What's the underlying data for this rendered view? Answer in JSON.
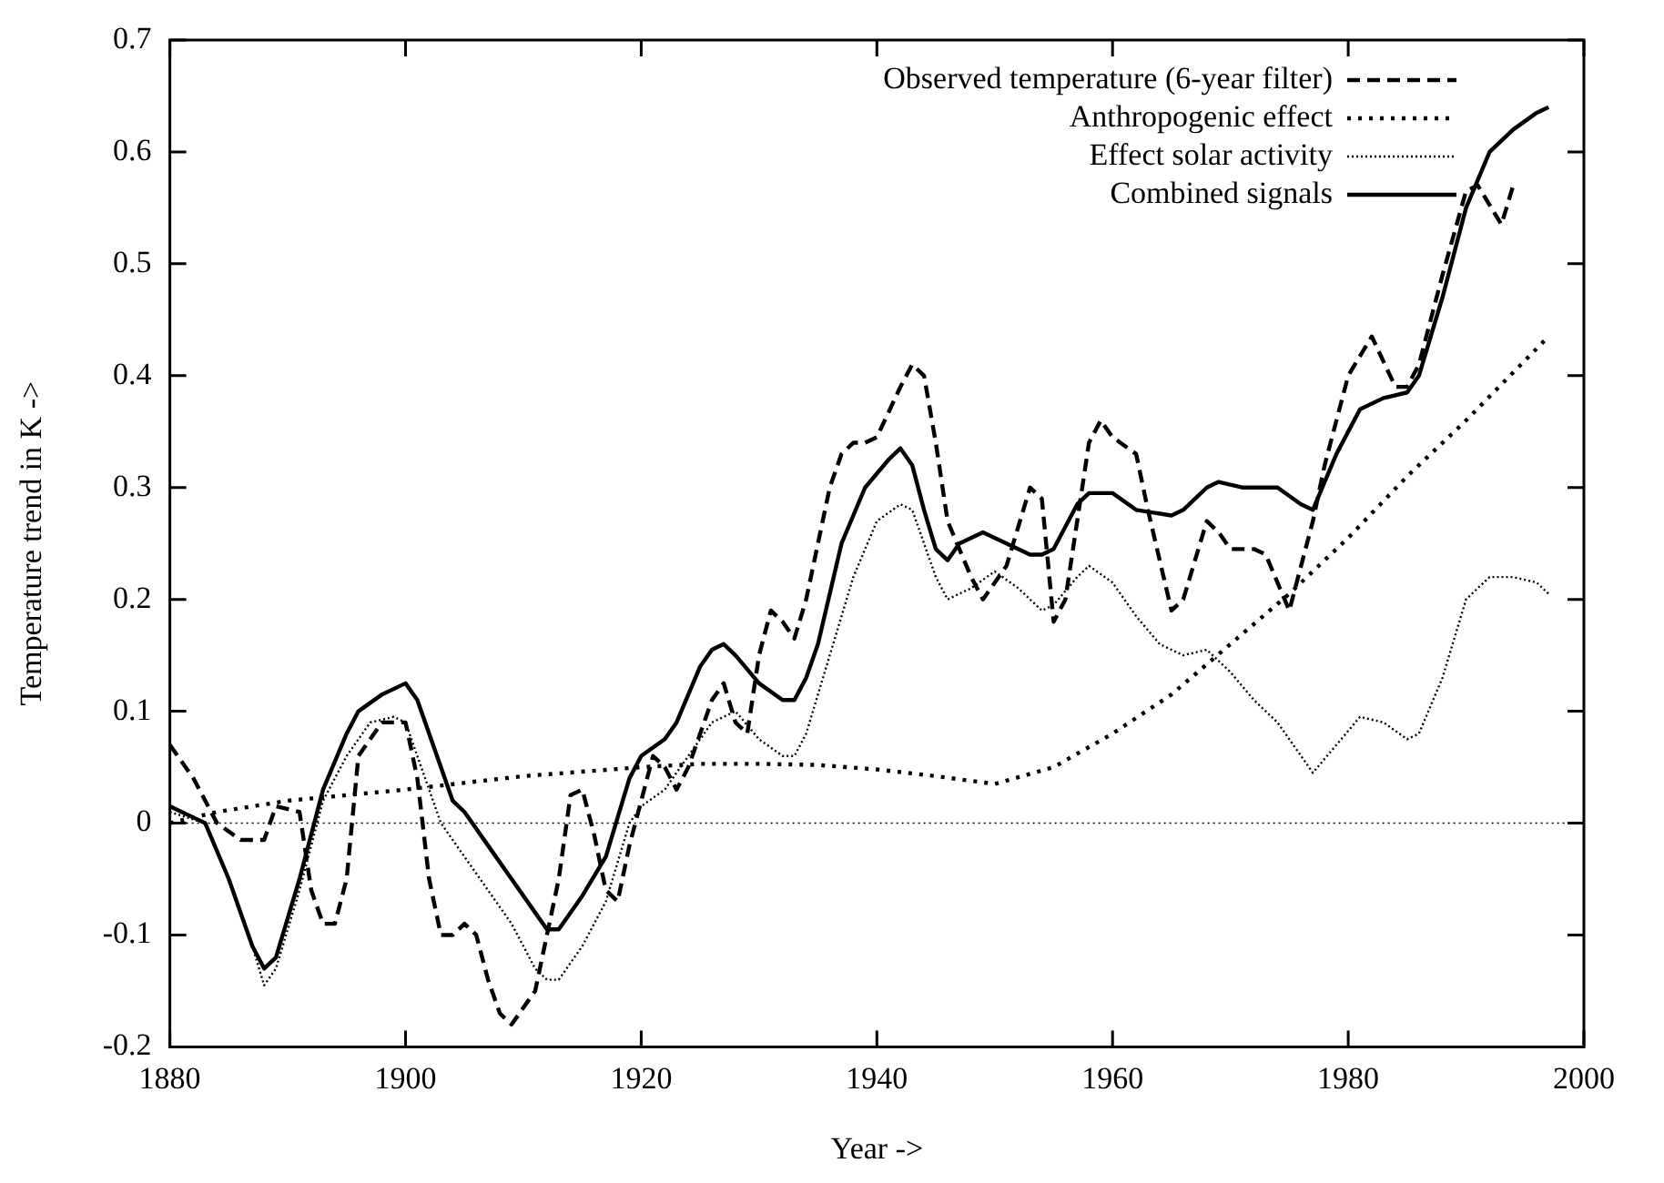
{
  "chart_data": {
    "type": "line",
    "xlabel": "Year ->",
    "ylabel": "Temperature trend in K ->",
    "xlim": [
      1880,
      2000
    ],
    "xticks": [
      1880,
      1900,
      1920,
      1940,
      1960,
      1980,
      2000
    ],
    "ylim": [
      -0.2,
      0.7
    ],
    "yticks": [
      -0.2,
      -0.1,
      0,
      0.1,
      0.2,
      0.3,
      0.4,
      0.5,
      0.6,
      0.7
    ],
    "grid": false,
    "legend": "top right",
    "marker": "none",
    "ref_lines": [
      {
        "axis": "y",
        "value": 0,
        "line_style": "dotted",
        "color": "#000000"
      }
    ],
    "series": [
      {
        "name": "Observed temperature (6-year filter)",
        "color": "#000000",
        "line_style": "dashed",
        "x": [
          1880,
          1882,
          1884,
          1886,
          1888,
          1889,
          1891,
          1892,
          1893,
          1894,
          1895,
          1896,
          1898,
          1900,
          1901,
          1902,
          1903,
          1904,
          1905,
          1906,
          1907,
          1908,
          1909,
          1911,
          1913,
          1914,
          1915,
          1916,
          1917,
          1918,
          1919,
          1920,
          1921,
          1922,
          1923,
          1924,
          1926,
          1927,
          1928,
          1929,
          1930,
          1931,
          1932,
          1933,
          1934,
          1936,
          1937,
          1938,
          1939,
          1940,
          1942,
          1943,
          1944,
          1945,
          1946,
          1948,
          1949,
          1951,
          1953,
          1954,
          1955,
          1956,
          1957,
          1958,
          1959,
          1960,
          1962,
          1963,
          1965,
          1966,
          1968,
          1969,
          1970,
          1972,
          1973,
          1975,
          1977,
          1978,
          1980,
          1982,
          1984,
          1985,
          1986,
          1988,
          1990,
          1991,
          1993,
          1994
        ],
        "values": [
          0.07,
          0.04,
          0.0,
          -0.015,
          -0.015,
          0.015,
          0.01,
          -0.06,
          -0.09,
          -0.09,
          -0.05,
          0.06,
          0.09,
          0.09,
          0.04,
          -0.05,
          -0.1,
          -0.1,
          -0.09,
          -0.1,
          -0.14,
          -0.17,
          -0.18,
          -0.15,
          -0.05,
          0.025,
          0.03,
          -0.01,
          -0.06,
          -0.07,
          -0.02,
          0.02,
          0.06,
          0.05,
          0.03,
          0.05,
          0.11,
          0.125,
          0.09,
          0.08,
          0.15,
          0.19,
          0.18,
          0.165,
          0.2,
          0.3,
          0.33,
          0.34,
          0.34,
          0.345,
          0.39,
          0.41,
          0.4,
          0.34,
          0.27,
          0.22,
          0.2,
          0.23,
          0.3,
          0.29,
          0.18,
          0.2,
          0.27,
          0.34,
          0.36,
          0.345,
          0.33,
          0.28,
          0.19,
          0.2,
          0.27,
          0.26,
          0.245,
          0.245,
          0.24,
          0.19,
          0.27,
          0.32,
          0.4,
          0.435,
          0.39,
          0.39,
          0.41,
          0.49,
          0.565,
          0.57,
          0.535,
          0.57
        ]
      },
      {
        "name": "Anthropogenic effect",
        "color": "#000000",
        "line_style": "dotted",
        "x": [
          1880,
          1884,
          1890,
          1900,
          1910,
          1920,
          1925,
          1930,
          1935,
          1940,
          1945,
          1950,
          1955,
          1960,
          1965,
          1970,
          1975,
          1980,
          1985,
          1990,
          1997
        ],
        "values": [
          0.0,
          0.01,
          0.02,
          0.03,
          0.042,
          0.05,
          0.053,
          0.053,
          0.052,
          0.048,
          0.042,
          0.035,
          0.05,
          0.08,
          0.115,
          0.16,
          0.205,
          0.255,
          0.31,
          0.36,
          0.435
        ]
      },
      {
        "name": "Effect solar activity",
        "color": "#000000",
        "line_style": "dotted",
        "x": [
          1880,
          1883,
          1885,
          1887,
          1888,
          1889,
          1891,
          1893,
          1895,
          1897,
          1899,
          1900,
          1901,
          1903,
          1905,
          1907,
          1909,
          1911,
          1912,
          1913,
          1915,
          1917,
          1919,
          1920,
          1922,
          1924,
          1926,
          1928,
          1930,
          1932,
          1933,
          1934,
          1936,
          1938,
          1940,
          1942,
          1943,
          1945,
          1946,
          1948,
          1950,
          1952,
          1954,
          1955,
          1957,
          1958,
          1960,
          1962,
          1964,
          1966,
          1968,
          1970,
          1972,
          1974,
          1976,
          1977,
          1979,
          1981,
          1983,
          1985,
          1986,
          1988,
          1990,
          1992,
          1994,
          1996,
          1997
        ],
        "values": [
          0.01,
          0.0,
          -0.05,
          -0.11,
          -0.145,
          -0.13,
          -0.06,
          0.02,
          0.06,
          0.09,
          0.095,
          0.09,
          0.06,
          0.0,
          -0.03,
          -0.06,
          -0.09,
          -0.13,
          -0.14,
          -0.14,
          -0.11,
          -0.07,
          0.0,
          0.015,
          0.03,
          0.06,
          0.09,
          0.1,
          0.075,
          0.06,
          0.06,
          0.08,
          0.15,
          0.22,
          0.27,
          0.285,
          0.28,
          0.22,
          0.2,
          0.21,
          0.225,
          0.21,
          0.19,
          0.195,
          0.22,
          0.23,
          0.215,
          0.185,
          0.16,
          0.15,
          0.155,
          0.135,
          0.11,
          0.09,
          0.06,
          0.045,
          0.07,
          0.095,
          0.09,
          0.075,
          0.08,
          0.13,
          0.2,
          0.22,
          0.22,
          0.215,
          0.205
        ]
      },
      {
        "name": "Combined signals",
        "color": "#000000",
        "line_style": "solid",
        "x": [
          1880,
          1882,
          1883,
          1885,
          1887,
          1888,
          1889,
          1891,
          1893,
          1895,
          1896,
          1898,
          1900,
          1901,
          1903,
          1904,
          1905,
          1907,
          1909,
          1911,
          1912,
          1913,
          1915,
          1917,
          1919,
          1920,
          1922,
          1923,
          1925,
          1926,
          1927,
          1928,
          1930,
          1932,
          1933,
          1934,
          1935,
          1937,
          1939,
          1941,
          1942,
          1943,
          1944,
          1945,
          1946,
          1947,
          1949,
          1951,
          1953,
          1954,
          1955,
          1957,
          1958,
          1960,
          1962,
          1965,
          1966,
          1968,
          1969,
          1971,
          1974,
          1976,
          1977,
          1979,
          1981,
          1983,
          1985,
          1986,
          1988,
          1990,
          1992,
          1994,
          1996,
          1997
        ],
        "values": [
          0.015,
          0.005,
          0.0,
          -0.05,
          -0.11,
          -0.13,
          -0.12,
          -0.05,
          0.03,
          0.08,
          0.1,
          0.115,
          0.125,
          0.11,
          0.05,
          0.02,
          0.01,
          -0.02,
          -0.05,
          -0.08,
          -0.095,
          -0.095,
          -0.065,
          -0.03,
          0.04,
          0.06,
          0.075,
          0.09,
          0.14,
          0.155,
          0.16,
          0.15,
          0.125,
          0.11,
          0.11,
          0.13,
          0.16,
          0.25,
          0.3,
          0.325,
          0.335,
          0.32,
          0.28,
          0.245,
          0.235,
          0.25,
          0.26,
          0.25,
          0.24,
          0.24,
          0.245,
          0.285,
          0.295,
          0.295,
          0.28,
          0.275,
          0.28,
          0.3,
          0.305,
          0.3,
          0.3,
          0.285,
          0.28,
          0.33,
          0.37,
          0.38,
          0.385,
          0.4,
          0.47,
          0.55,
          0.6,
          0.62,
          0.635,
          0.64
        ]
      }
    ]
  }
}
